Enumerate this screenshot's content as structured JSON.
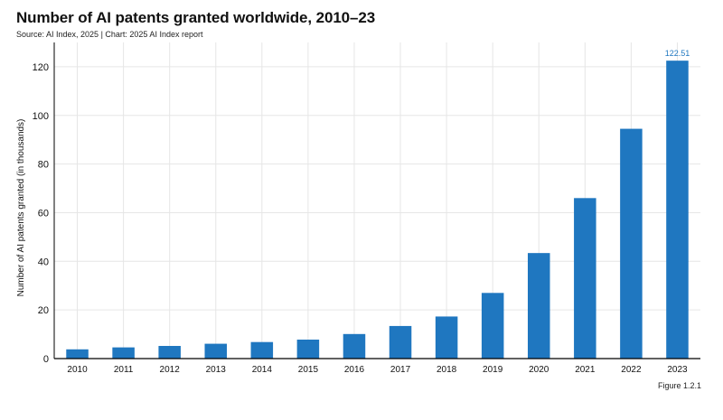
{
  "header": {
    "title": "Number of AI patents granted worldwide, 2010–23",
    "source": "Source: AI Index, 2025 | Chart: 2025 AI Index report"
  },
  "footer": {
    "figure_label": "Figure 1.2.1"
  },
  "colors": {
    "bar": "#1f77c0",
    "label": "#1f77c0",
    "grid": "#e6e6e6",
    "axis": "#000000"
  },
  "chart_data": {
    "type": "bar",
    "categories": [
      "2010",
      "2011",
      "2012",
      "2013",
      "2014",
      "2015",
      "2016",
      "2017",
      "2018",
      "2019",
      "2020",
      "2021",
      "2022",
      "2023"
    ],
    "values": [
      3.8,
      4.6,
      5.2,
      6.1,
      6.8,
      7.8,
      10.1,
      13.4,
      17.3,
      27.0,
      43.4,
      66.0,
      94.5,
      122.51
    ],
    "value_labels": {
      "2023": "122.51"
    },
    "title": "Number of AI patents granted worldwide, 2010–23",
    "xlabel": "",
    "ylabel": "Number of AI patents granted (in thousands)",
    "ylim": [
      0,
      130
    ],
    "yticks": [
      0,
      20,
      40,
      60,
      80,
      100,
      120
    ],
    "grid": true
  }
}
